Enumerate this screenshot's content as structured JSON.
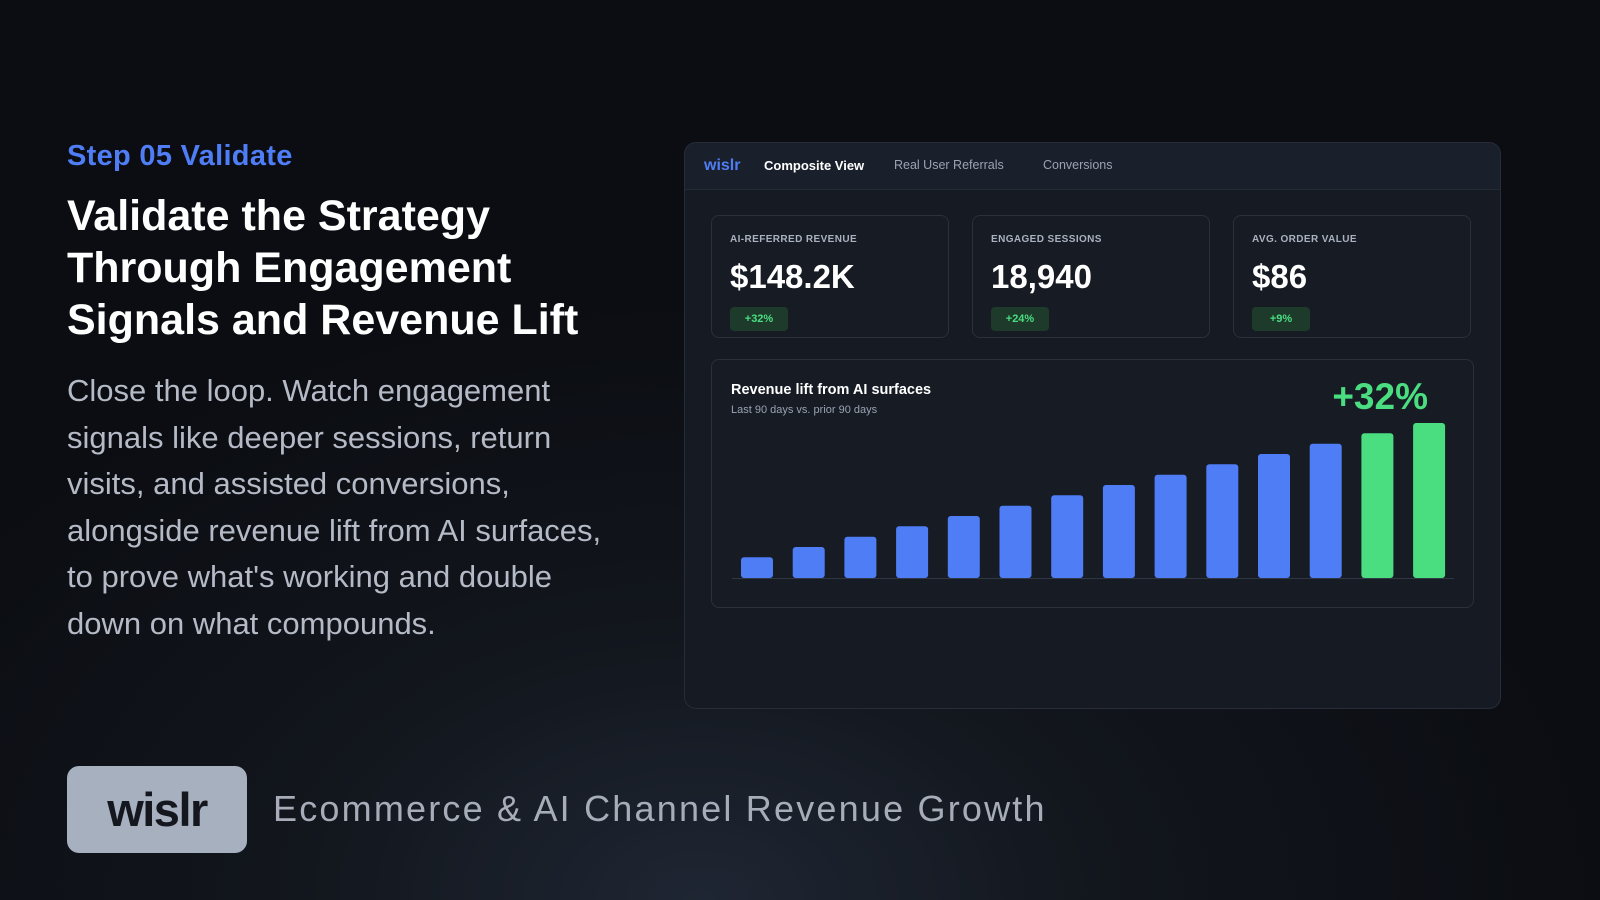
{
  "hero": {
    "step": "Step 05 Validate",
    "headline_lines": [
      "Validate the Strategy",
      "Through Engagement",
      "Signals and Revenue Lift"
    ],
    "body_lines": [
      "Close the loop. Watch engagement",
      "signals like deeper sessions, return",
      "visits, and assisted conversions,",
      "alongside revenue lift from AI surfaces,",
      "to prove what's working and double",
      "down on what compounds."
    ]
  },
  "dashboard": {
    "logo": "wislr",
    "tabs": [
      {
        "label": "Composite View",
        "active": true
      },
      {
        "label": "Real User Referrals",
        "active": false
      },
      {
        "label": "Conversions",
        "active": false
      }
    ],
    "kpis": [
      {
        "label": "AI-REFERRED REVENUE",
        "value": "$148.2K",
        "change": "+32%"
      },
      {
        "label": "ENGAGED SESSIONS",
        "value": "18,940",
        "change": "+24%"
      },
      {
        "label": "AVG. ORDER VALUE",
        "value": "$86",
        "change": "+9%"
      }
    ],
    "chart": {
      "title": "Revenue lift from AI surfaces",
      "subtitle": "Last 90 days vs. prior 90 days",
      "lift": "+32%"
    }
  },
  "chart_data": {
    "type": "bar",
    "title": "Revenue lift from AI surfaces",
    "subtitle": "Last 90 days vs. prior 90 days",
    "values": [
      2,
      3,
      4,
      5,
      6,
      7,
      8,
      9,
      10,
      11,
      12,
      13,
      14,
      15
    ],
    "highlight_from_index": 12,
    "ylim": [
      0,
      15
    ],
    "grid": false,
    "colors": {
      "bar": "#4f7df5",
      "highlight": "#4ade80",
      "baseline": "#2f3745"
    }
  },
  "footer": {
    "logo": "wislr",
    "tagline": "Ecommerce & AI Channel Revenue Growth"
  },
  "colors": {
    "accent": "#4f7df5",
    "positive": "#4ade80",
    "panel": "#151a23"
  }
}
